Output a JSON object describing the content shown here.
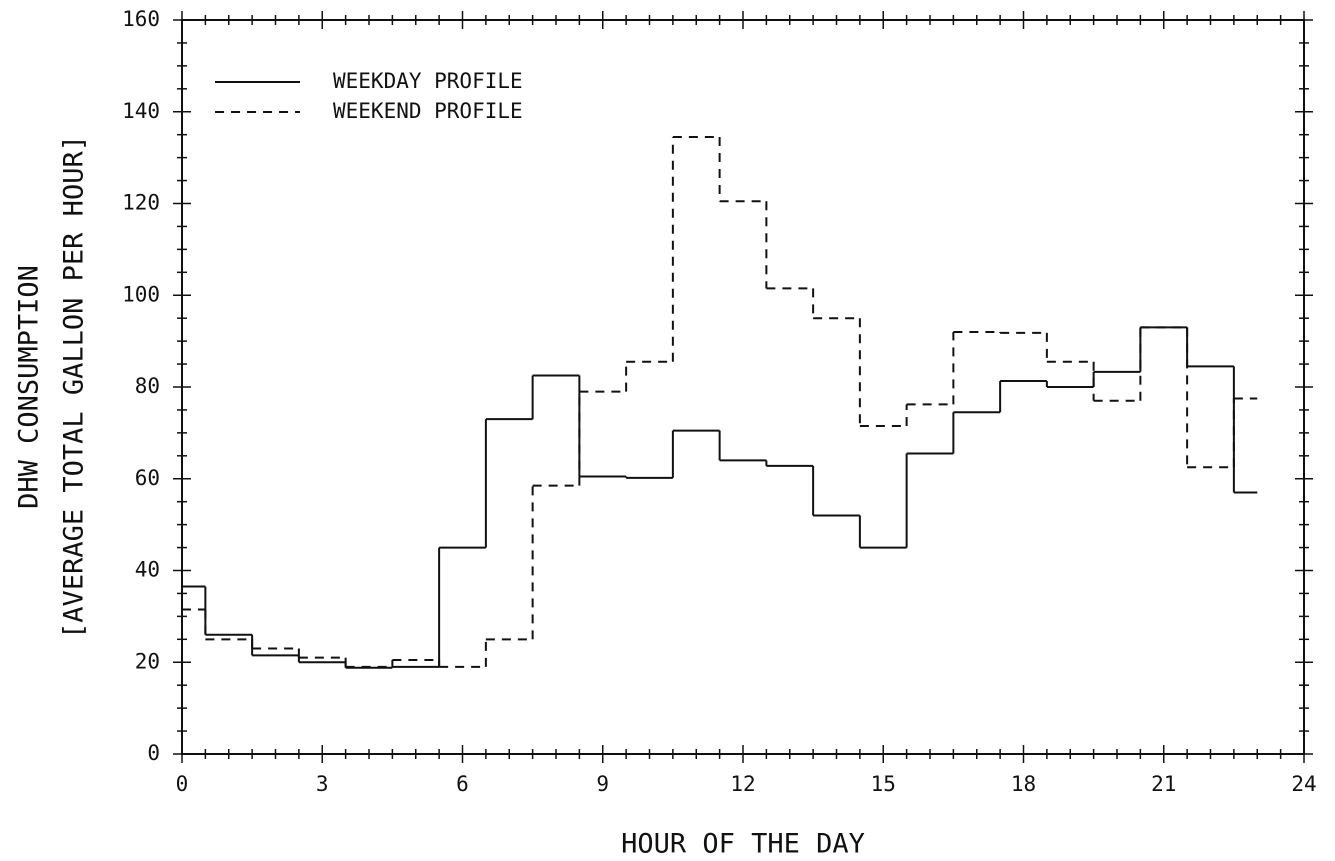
{
  "chart_data": {
    "type": "step",
    "xlabel": "HOUR OF THE DAY",
    "ylabel": [
      "DHW CONSUMPTION",
      "[AVERAGE TOTAL GALLON PER HOUR]"
    ],
    "x": [
      0,
      1,
      2,
      3,
      4,
      5,
      6,
      7,
      8,
      9,
      10,
      11,
      12,
      13,
      14,
      15,
      16,
      17,
      18,
      19,
      20,
      21,
      22,
      23
    ],
    "series": [
      {
        "name": "WEEKDAY PROFILE",
        "color": "#111111",
        "dash": "solid",
        "values": [
          36.5,
          26,
          21.5,
          20,
          18.8,
          19,
          45,
          73,
          82.5,
          60.5,
          60.2,
          70.5,
          64,
          62.8,
          52,
          45,
          65.5,
          74.5,
          81.3,
          80,
          83.3,
          93,
          84.5,
          57
        ]
      },
      {
        "name": "WEEKEND PROFILE",
        "color": "#111111",
        "dash": "dashed",
        "values": [
          31.5,
          25,
          23,
          21,
          19,
          20.5,
          19,
          25,
          58.5,
          79,
          85.5,
          134.5,
          120.5,
          101.5,
          95,
          71.5,
          76.2,
          92,
          91.8,
          85.5,
          77,
          93,
          62.5,
          77.5
        ]
      }
    ],
    "xlim": [
      0,
      24
    ],
    "xticks": [
      0,
      3,
      6,
      9,
      12,
      15,
      18,
      21,
      24
    ],
    "ylim": [
      0,
      160
    ],
    "yticks": [
      0,
      20,
      40,
      60,
      80,
      100,
      120,
      140,
      160
    ],
    "legend": "upper left"
  }
}
